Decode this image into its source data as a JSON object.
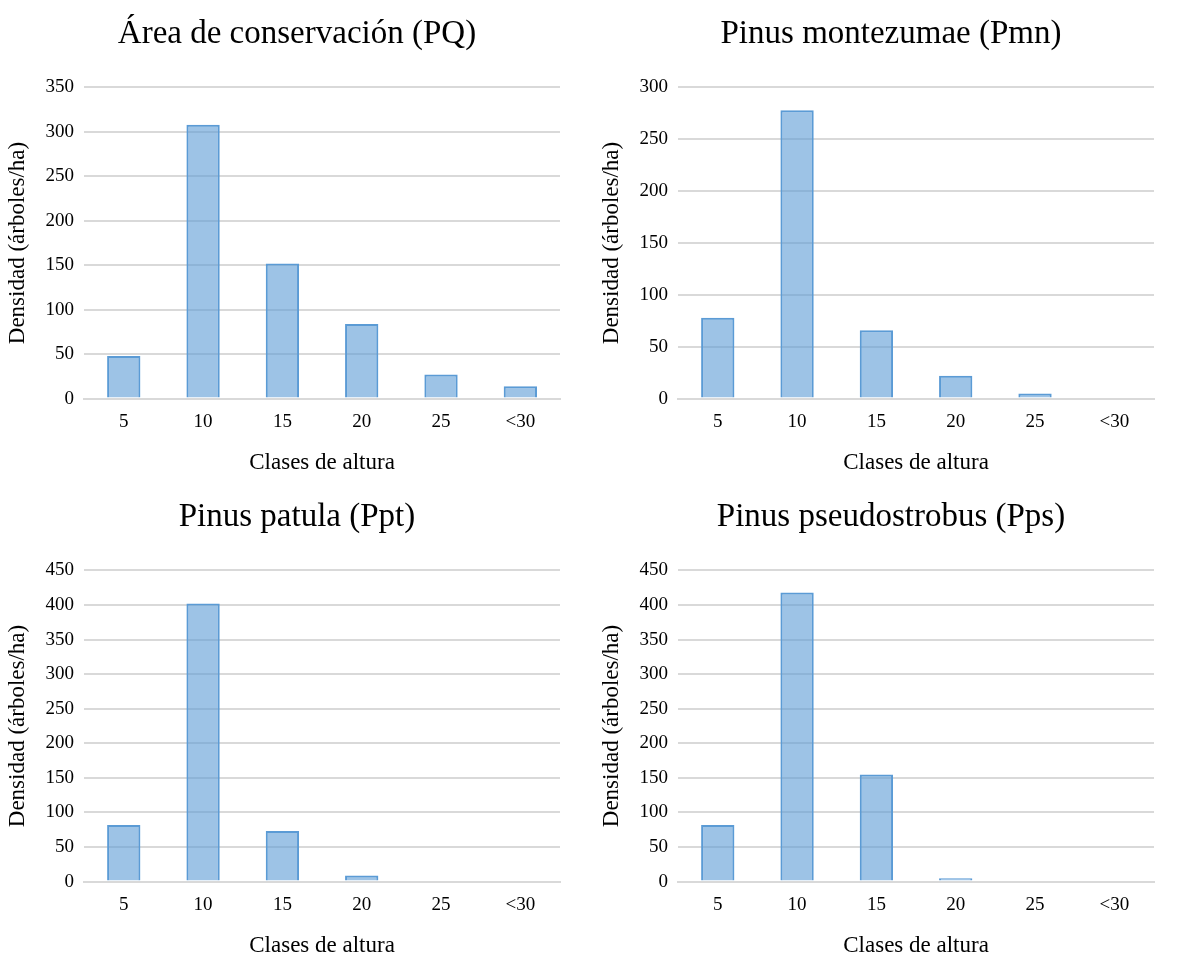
{
  "chart_data": [
    {
      "type": "bar",
      "title": "Área de conservación (PQ)",
      "xlabel": "Clases de altura",
      "ylabel": "Densidad (árboles/ha)",
      "categories": [
        "5",
        "10",
        "15",
        "20",
        "25",
        "<30"
      ],
      "values": [
        48,
        308,
        152,
        84,
        27,
        14
      ],
      "color": "#5b9bd5",
      "ylim": [
        0,
        350
      ],
      "yticks": [
        0,
        50,
        100,
        150,
        200,
        250,
        300,
        350
      ],
      "grid": "y"
    },
    {
      "type": "bar",
      "title": "Pinus montezumae (Pmn)",
      "xlabel": "Clases de altura",
      "ylabel": "Densidad (árboles/ha)",
      "categories": [
        "5",
        "10",
        "15",
        "20",
        "25",
        "<30"
      ],
      "values": [
        78,
        278,
        66,
        22,
        5,
        0
      ],
      "color": "#5b9bd5",
      "ylim": [
        0,
        300
      ],
      "yticks": [
        0,
        50,
        100,
        150,
        200,
        250,
        300
      ],
      "grid": "y"
    },
    {
      "type": "bar",
      "title": "Pinus patula (Ppt)",
      "xlabel": "Clases de altura",
      "ylabel": "Densidad (árboles/ha)",
      "categories": [
        "5",
        "10",
        "15",
        "20",
        "25",
        "<30"
      ],
      "values": [
        82,
        402,
        73,
        9,
        0,
        0
      ],
      "color": "#5b9bd5",
      "ylim": [
        0,
        450
      ],
      "yticks": [
        0,
        50,
        100,
        150,
        200,
        250,
        300,
        350,
        400,
        450
      ],
      "grid": "y"
    },
    {
      "type": "bar",
      "title": "Pinus pseudostrobus (Pps)",
      "xlabel": "Clases de altura",
      "ylabel": "Densidad (árboles/ha)",
      "categories": [
        "5",
        "10",
        "15",
        "20",
        "25",
        "<30"
      ],
      "values": [
        82,
        418,
        155,
        5,
        0,
        0
      ],
      "color": "#5b9bd5",
      "ylim": [
        0,
        450
      ],
      "yticks": [
        0,
        50,
        100,
        150,
        200,
        250,
        300,
        350,
        400,
        450
      ],
      "grid": "y"
    }
  ]
}
